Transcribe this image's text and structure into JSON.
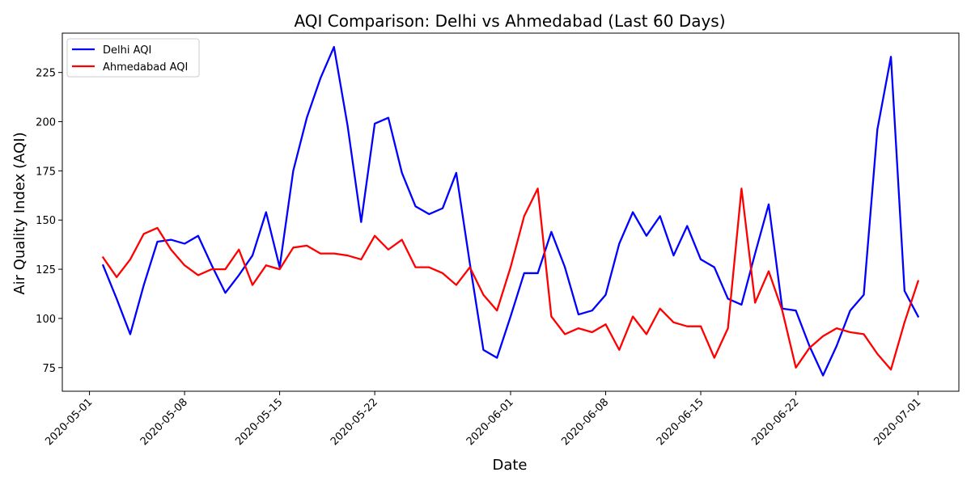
{
  "chart_data": {
    "type": "line",
    "title": "AQI Comparison: Delhi vs Ahmedabad (Last 60 Days)",
    "xlabel": "Date",
    "ylabel": "Air Quality Index (AQI)",
    "x_ticks": [
      "2020-05-01",
      "2020-05-08",
      "2020-05-15",
      "2020-05-22",
      "2020-06-01",
      "2020-06-08",
      "2020-06-15",
      "2020-06-22",
      "2020-07-01"
    ],
    "y_ticks": [
      75,
      100,
      125,
      150,
      175,
      200,
      225
    ],
    "ylim": [
      63,
      245
    ],
    "xlim": [
      "2020-04-29",
      "2020-07-04"
    ],
    "legend_position": "top-left",
    "grid": false,
    "x": [
      "2020-05-02",
      "2020-05-03",
      "2020-05-04",
      "2020-05-05",
      "2020-05-06",
      "2020-05-07",
      "2020-05-08",
      "2020-05-09",
      "2020-05-10",
      "2020-05-11",
      "2020-05-12",
      "2020-05-13",
      "2020-05-14",
      "2020-05-15",
      "2020-05-16",
      "2020-05-17",
      "2020-05-18",
      "2020-05-19",
      "2020-05-20",
      "2020-05-21",
      "2020-05-22",
      "2020-05-23",
      "2020-05-24",
      "2020-05-25",
      "2020-05-26",
      "2020-05-27",
      "2020-05-28",
      "2020-05-29",
      "2020-05-30",
      "2020-05-31",
      "2020-06-01",
      "2020-06-02",
      "2020-06-03",
      "2020-06-04",
      "2020-06-05",
      "2020-06-06",
      "2020-06-07",
      "2020-06-08",
      "2020-06-09",
      "2020-06-10",
      "2020-06-11",
      "2020-06-12",
      "2020-06-13",
      "2020-06-14",
      "2020-06-15",
      "2020-06-16",
      "2020-06-17",
      "2020-06-18",
      "2020-06-19",
      "2020-06-20",
      "2020-06-21",
      "2020-06-22",
      "2020-06-23",
      "2020-06-24",
      "2020-06-25",
      "2020-06-26",
      "2020-06-27",
      "2020-06-28",
      "2020-06-29",
      "2020-06-30",
      "2020-07-01"
    ],
    "series": [
      {
        "name": "Delhi AQI",
        "color": "#0000ff",
        "values": [
          127,
          110,
          92,
          117,
          139,
          140,
          138,
          142,
          127,
          113,
          122,
          132,
          154,
          126,
          175,
          202,
          222,
          238,
          198,
          149,
          199,
          202,
          174,
          157,
          153,
          156,
          174,
          128,
          84,
          80,
          101,
          123,
          123,
          144,
          126,
          102,
          104,
          112,
          138,
          154,
          142,
          152,
          132,
          147,
          130,
          126,
          110,
          107,
          133,
          158,
          105,
          104,
          86,
          71,
          86,
          104,
          112,
          196,
          233,
          114,
          101
        ]
      },
      {
        "name": "Ahmedabad AQI",
        "color": "#ff0000",
        "values": [
          131,
          121,
          130,
          143,
          146,
          135,
          127,
          122,
          125,
          125,
          135,
          117,
          127,
          125,
          136,
          137,
          133,
          133,
          132,
          130,
          142,
          135,
          140,
          126,
          126,
          123,
          117,
          126,
          112,
          104,
          126,
          152,
          166,
          101,
          92,
          95,
          93,
          97,
          84,
          101,
          92,
          105,
          98,
          96,
          96,
          80,
          95,
          166,
          108,
          124,
          104,
          75,
          85,
          91,
          95,
          93,
          92,
          82,
          74,
          98,
          119
        ]
      }
    ]
  }
}
